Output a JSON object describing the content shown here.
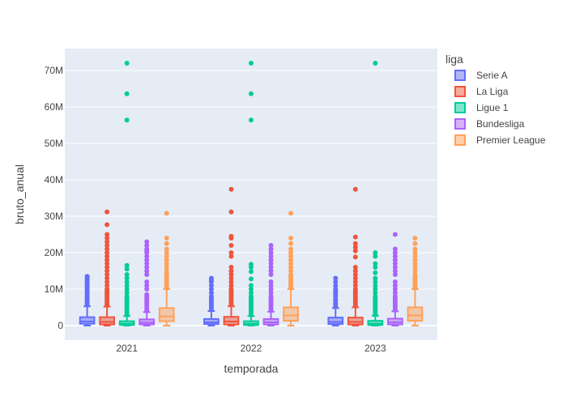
{
  "chart_data": {
    "type": "box",
    "xlabel": "temporada",
    "ylabel": "bruto_anual",
    "ylim": [
      -4000000,
      76000000
    ],
    "yticks": [
      0,
      10000000,
      20000000,
      30000000,
      40000000,
      50000000,
      60000000,
      70000000
    ],
    "ytick_labels": [
      "0",
      "10M",
      "20M",
      "30M",
      "40M",
      "50M",
      "60M",
      "70M"
    ],
    "categories": [
      "2021",
      "2022",
      "2023"
    ],
    "legend": {
      "title": "liga",
      "placement": "right"
    },
    "series": [
      {
        "name": "Serie A",
        "color": "#636efa",
        "boxes": [
          {
            "category": "2021",
            "min": 0,
            "q1": 500000,
            "median": 1100000,
            "q3": 2300000,
            "max": 5300000,
            "outliers": [
              5600000,
              6000000,
              6500000,
              7000000,
              7500000,
              8000000,
              8500000,
              9000000,
              9500000,
              10000000,
              10500000,
              11000000,
              11500000,
              12000000,
              12500000,
              13000000,
              13500000
            ]
          },
          {
            "category": "2022",
            "min": 0,
            "q1": 400000,
            "median": 900000,
            "q3": 1800000,
            "max": 4000000,
            "outliers": [
              4500000,
              5000000,
              5500000,
              6000000,
              6500000,
              7000000,
              7500000,
              8000000,
              9000000,
              10000000,
              11000000,
              12000000,
              12500000,
              13000000
            ]
          },
          {
            "category": "2023",
            "min": 0,
            "q1": 400000,
            "median": 1000000,
            "q3": 2200000,
            "max": 4800000,
            "outliers": [
              5200000,
              5800000,
              6200000,
              6800000,
              7200000,
              8000000,
              8500000,
              9000000,
              9500000,
              10000000,
              11000000,
              12000000,
              13000000
            ]
          }
        ]
      },
      {
        "name": "La Liga",
        "color": "#ef553b",
        "boxes": [
          {
            "category": "2021",
            "min": 0,
            "q1": 300000,
            "median": 1000000,
            "q3": 2300000,
            "max": 5200000,
            "outliers": [
              5600000,
              6000000,
              6500000,
              7000000,
              7500000,
              8000000,
              8500000,
              9000000,
              9500000,
              10000000,
              11000000,
              12000000,
              13000000,
              14000000,
              15000000,
              16000000,
              17000000,
              18000000,
              19000000,
              20000000,
              21000000,
              22000000,
              23000000,
              24000000,
              25000000,
              27700000,
              31200000
            ]
          },
          {
            "category": "2022",
            "min": 0,
            "q1": 300000,
            "median": 1100000,
            "q3": 2400000,
            "max": 5300000,
            "outliers": [
              5800000,
              6500000,
              7000000,
              7500000,
              8000000,
              8500000,
              9000000,
              9500000,
              10000000,
              11000000,
              12000000,
              13000000,
              14000000,
              15000000,
              16000000,
              19000000,
              20000000,
              22000000,
              24000000,
              24500000,
              31200000,
              37400000
            ]
          },
          {
            "category": "2023",
            "min": 0,
            "q1": 300000,
            "median": 1000000,
            "q3": 2200000,
            "max": 5000000,
            "outliers": [
              5500000,
              6000000,
              6500000,
              7000000,
              7500000,
              8000000,
              8500000,
              9000000,
              9500000,
              10000000,
              11000000,
              12000000,
              13000000,
              14000000,
              15000000,
              16000000,
              18800000,
              20500000,
              21500000,
              22500000,
              24300000,
              37400000
            ]
          }
        ]
      },
      {
        "name": "Ligue 1",
        "color": "#00cc96",
        "boxes": [
          {
            "category": "2021",
            "min": 0,
            "q1": 150000,
            "median": 500000,
            "q3": 1200000,
            "max": 2600000,
            "outliers": [
              3000000,
              3500000,
              4000000,
              4500000,
              5000000,
              5500000,
              6000000,
              6500000,
              7000000,
              7500000,
              8000000,
              9000000,
              10000000,
              11000000,
              12000000,
              13000000,
              14000000,
              15500000,
              16500000,
              56400000,
              63600000,
              72000000
            ]
          },
          {
            "category": "2022",
            "min": 0,
            "q1": 150000,
            "median": 500000,
            "q3": 1200000,
            "max": 2600000,
            "outliers": [
              3000000,
              3500000,
              4000000,
              4500000,
              5000000,
              5500000,
              6000000,
              6500000,
              7000000,
              7500000,
              8000000,
              9000000,
              10000000,
              11000000,
              12800000,
              14800000,
              16000000,
              16800000,
              56400000,
              63600000,
              72000000
            ]
          },
          {
            "category": "2023",
            "min": 0,
            "q1": 150000,
            "median": 500000,
            "q3": 1300000,
            "max": 2700000,
            "outliers": [
              3000000,
              3500000,
              4000000,
              4500000,
              5000000,
              5500000,
              6000000,
              6500000,
              7000000,
              7500000,
              8000000,
              9000000,
              10000000,
              11000000,
              12000000,
              13000000,
              14500000,
              16000000,
              17000000,
              19000000,
              20000000,
              72000000
            ]
          }
        ]
      },
      {
        "name": "Bundesliga",
        "color": "#ab63fa",
        "boxes": [
          {
            "category": "2021",
            "min": 0,
            "q1": 300000,
            "median": 800000,
            "q3": 1700000,
            "max": 3700000,
            "outliers": [
              4200000,
              4800000,
              5500000,
              6000000,
              6500000,
              7000000,
              7500000,
              8000000,
              8500000,
              10000000,
              11000000,
              12000000,
              14000000,
              15000000,
              16000000,
              17000000,
              18000000,
              19000000,
              20000000,
              20500000,
              21000000,
              22000000,
              23000000
            ]
          },
          {
            "category": "2022",
            "min": 0,
            "q1": 300000,
            "median": 900000,
            "q3": 1800000,
            "max": 3800000,
            "outliers": [
              4200000,
              4800000,
              5500000,
              6000000,
              6500000,
              7000000,
              7500000,
              8000000,
              9000000,
              10000000,
              11000000,
              12000000,
              14000000,
              15000000,
              16000000,
              17000000,
              18000000,
              19000000,
              20000000,
              21000000,
              22000000
            ]
          },
          {
            "category": "2023",
            "min": 0,
            "q1": 300000,
            "median": 900000,
            "q3": 1900000,
            "max": 3900000,
            "outliers": [
              4300000,
              5000000,
              5500000,
              6000000,
              6500000,
              7000000,
              7500000,
              8000000,
              9000000,
              10000000,
              11000000,
              12000000,
              14000000,
              15000000,
              16000000,
              17000000,
              18000000,
              19000000,
              20000000,
              21000000,
              25000000
            ]
          }
        ]
      },
      {
        "name": "Premier League",
        "color": "#ffa15a",
        "boxes": [
          {
            "category": "2021",
            "min": 0,
            "q1": 1200000,
            "median": 2500000,
            "q3": 4800000,
            "max": 10000000,
            "outliers": [
              10500000,
              11000000,
              11500000,
              12000000,
              12500000,
              13000000,
              13500000,
              14000000,
              14500000,
              15000000,
              16000000,
              17000000,
              18000000,
              19000000,
              20000000,
              21000000,
              22500000,
              24000000,
              30800000
            ]
          },
          {
            "category": "2022",
            "min": 0,
            "q1": 1300000,
            "median": 2800000,
            "q3": 5000000,
            "max": 10000000,
            "outliers": [
              10500000,
              11000000,
              11500000,
              12000000,
              12500000,
              13000000,
              13500000,
              14000000,
              15000000,
              16000000,
              17000000,
              18000000,
              19000000,
              20000000,
              21000000,
              22500000,
              24000000,
              30800000
            ]
          },
          {
            "category": "2023",
            "min": 0,
            "q1": 1300000,
            "median": 2800000,
            "q3": 5000000,
            "max": 10000000,
            "outliers": [
              10500000,
              11000000,
              11500000,
              12000000,
              12500000,
              13000000,
              13500000,
              14000000,
              15000000,
              16000000,
              17000000,
              18000000,
              19000000,
              20000000,
              21000000,
              22500000,
              24000000
            ]
          }
        ]
      }
    ]
  }
}
